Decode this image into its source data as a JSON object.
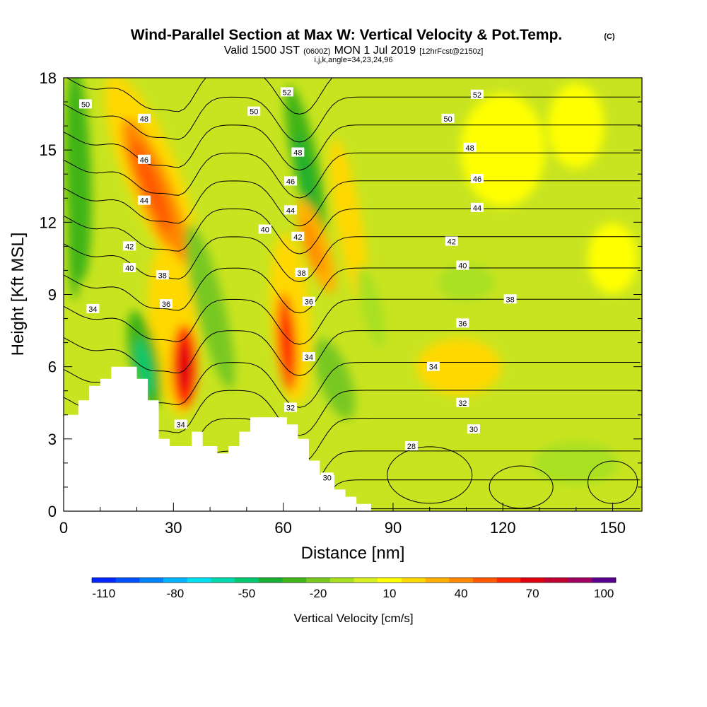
{
  "title": {
    "main": "Wind-Parallel Section at Max W: Vertical Velocity & Pot.Temp.",
    "copyright": "(C)",
    "valid_prefix": "Valid 1500 JST",
    "valid_utc": "(0600Z)",
    "valid_date": "MON 1 Jul 2019",
    "forecast": "[12hrFcst@2150z]",
    "params": "i,j,k,angle=34,23,24,96"
  },
  "chart_data": {
    "type": "heatmap",
    "xlabel": "Distance [nm]",
    "ylabel": "Height [Kft MSL]",
    "xlim": [
      0,
      158
    ],
    "ylim": [
      0,
      18
    ],
    "x_ticks": [
      0,
      30,
      60,
      90,
      120,
      150
    ],
    "y_ticks": [
      0,
      3,
      6,
      9,
      12,
      15,
      18
    ],
    "background_fill": "yellow-green (approx. 0 to 10 cm/s)",
    "updraft_maxima": [
      {
        "x": 24,
        "y": 13.5,
        "value": 50
      },
      {
        "x": 33,
        "y": 6.0,
        "value": 70
      },
      {
        "x": 61,
        "y": 7.0,
        "value": 60
      },
      {
        "x": 68,
        "y": 11.0,
        "value": 40
      }
    ],
    "downdraft_minima": [
      {
        "x": 22,
        "y": 6.0,
        "value": -45
      },
      {
        "x": 66,
        "y": 14.0,
        "value": -40
      },
      {
        "x": 3,
        "y": 12.0,
        "value": -30
      }
    ],
    "terrain": {
      "x": [
        0,
        4,
        4,
        7,
        7,
        10,
        10,
        13,
        13,
        20,
        20,
        23,
        23,
        26,
        26,
        29,
        29,
        32,
        32,
        35,
        35,
        38,
        38,
        42,
        42,
        45,
        45,
        48,
        48,
        51,
        51,
        54,
        54,
        61,
        61,
        64,
        64,
        67,
        67,
        70,
        70,
        74,
        74,
        77,
        77,
        80,
        80,
        84,
        84
      ],
      "y": [
        4.0,
        4.0,
        4.6,
        4.6,
        5.2,
        5.2,
        5.5,
        5.5,
        6.0,
        6.0,
        5.5,
        5.5,
        4.6,
        4.6,
        3.0,
        3.0,
        2.7,
        2.7,
        2.7,
        2.7,
        3.3,
        3.3,
        2.7,
        2.7,
        2.4,
        2.4,
        2.7,
        2.7,
        3.3,
        3.3,
        3.9,
        3.9,
        3.9,
        3.9,
        3.6,
        3.6,
        3.0,
        3.0,
        2.1,
        2.1,
        1.5,
        1.5,
        0.9,
        0.9,
        0.6,
        0.6,
        0.3,
        0.3,
        0
      ]
    },
    "isentrope_interval": 2,
    "isentrope_labels": [
      {
        "text": "50",
        "x": 6,
        "y": 16.9
      },
      {
        "text": "48",
        "x": 22,
        "y": 16.3
      },
      {
        "text": "46",
        "x": 22,
        "y": 14.6
      },
      {
        "text": "44",
        "x": 22,
        "y": 12.9
      },
      {
        "text": "42",
        "x": 18,
        "y": 11.0
      },
      {
        "text": "40",
        "x": 18,
        "y": 10.1
      },
      {
        "text": "38",
        "x": 27,
        "y": 9.8
      },
      {
        "text": "36",
        "x": 28,
        "y": 8.6
      },
      {
        "text": "34",
        "x": 8,
        "y": 8.4
      },
      {
        "text": "34",
        "x": 32,
        "y": 3.6
      },
      {
        "text": "52",
        "x": 61,
        "y": 17.4
      },
      {
        "text": "50",
        "x": 52,
        "y": 16.6
      },
      {
        "text": "48",
        "x": 64,
        "y": 14.9
      },
      {
        "text": "46",
        "x": 62,
        "y": 13.7
      },
      {
        "text": "44",
        "x": 62,
        "y": 12.5
      },
      {
        "text": "42",
        "x": 64,
        "y": 11.4
      },
      {
        "text": "40",
        "x": 55,
        "y": 11.7
      },
      {
        "text": "38",
        "x": 65,
        "y": 9.9
      },
      {
        "text": "36",
        "x": 67,
        "y": 8.7
      },
      {
        "text": "34",
        "x": 67,
        "y": 6.4
      },
      {
        "text": "32",
        "x": 62,
        "y": 4.3
      },
      {
        "text": "30",
        "x": 72,
        "y": 1.4
      },
      {
        "text": "52",
        "x": 113,
        "y": 17.3
      },
      {
        "text": "50",
        "x": 105,
        "y": 16.3
      },
      {
        "text": "48",
        "x": 111,
        "y": 15.1
      },
      {
        "text": "46",
        "x": 113,
        "y": 13.8
      },
      {
        "text": "44",
        "x": 113,
        "y": 12.6
      },
      {
        "text": "42",
        "x": 106,
        "y": 11.2
      },
      {
        "text": "40",
        "x": 109,
        "y": 10.2
      },
      {
        "text": "38",
        "x": 122,
        "y": 8.8
      },
      {
        "text": "36",
        "x": 109,
        "y": 7.8
      },
      {
        "text": "34",
        "x": 101,
        "y": 6.0
      },
      {
        "text": "32",
        "x": 109,
        "y": 4.5
      },
      {
        "text": "30",
        "x": 112,
        "y": 3.4
      },
      {
        "text": "28",
        "x": 95,
        "y": 2.7
      }
    ],
    "colorbar": {
      "label": "Vertical Velocity [cm/s]",
      "tick_labels": [
        "-110",
        "-80",
        "-50",
        "-20",
        "10",
        "40",
        "70",
        "100"
      ],
      "colors": [
        "#0026ff",
        "#0050ff",
        "#0084ff",
        "#00b4ff",
        "#00e0f0",
        "#00d8b0",
        "#00c870",
        "#18b030",
        "#40b418",
        "#78c820",
        "#a8e020",
        "#d8f020",
        "#ffff00",
        "#ffd800",
        "#ffb000",
        "#ff8800",
        "#ff5800",
        "#ff2800",
        "#e00010",
        "#c00030",
        "#a00060",
        "#5a0090"
      ]
    }
  }
}
